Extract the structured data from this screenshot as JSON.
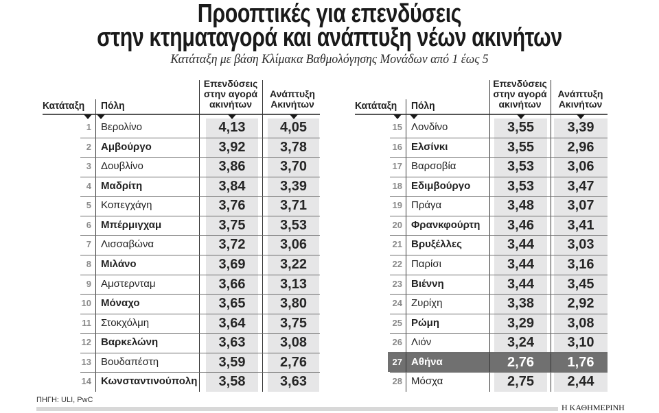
{
  "header": {
    "title_line1": "Προοπτικές για επενδύσεις",
    "title_line2": "στην κτηματαγορά και ανάπτυξη νέων ακινήτων",
    "subtitle": "Κατάταξη με βάση Κλίμακα Βαθμολόγησης Μονάδων από 1 έως 5"
  },
  "columns": {
    "rank": "Κατάταξη",
    "city": "Πόλη",
    "investment": [
      "Επενδύσεις",
      "στην αγορά",
      "ακινήτων"
    ],
    "development": [
      "Ανάπτυξη",
      "Ακινήτων"
    ]
  },
  "tables": [
    {
      "rows": [
        {
          "rank": "1",
          "city": "Βερολίνο",
          "investment": "4,13",
          "development": "4,05",
          "bold": false
        },
        {
          "rank": "2",
          "city": "Αμβούργο",
          "investment": "3,92",
          "development": "3,78",
          "bold": true
        },
        {
          "rank": "3",
          "city": "Δουβλίνο",
          "investment": "3,86",
          "development": "3,70",
          "bold": false
        },
        {
          "rank": "4",
          "city": "Μαδρίτη",
          "investment": "3,84",
          "development": "3,39",
          "bold": true
        },
        {
          "rank": "5",
          "city": "Κοπεγχάγη",
          "investment": "3,76",
          "development": "3,71",
          "bold": false
        },
        {
          "rank": "6",
          "city": "Μπέρμιγχαμ",
          "investment": "3,75",
          "development": "3,53",
          "bold": true
        },
        {
          "rank": "7",
          "city": "Λισσαβώνα",
          "investment": "3,72",
          "development": "3,06",
          "bold": false
        },
        {
          "rank": "8",
          "city": "Μιλάνο",
          "investment": "3,69",
          "development": "3,22",
          "bold": true
        },
        {
          "rank": "9",
          "city": "Αμστερνταμ",
          "investment": "3,66",
          "development": "3,13",
          "bold": false
        },
        {
          "rank": "10",
          "city": "Μόναχο",
          "investment": "3,65",
          "development": "3,80",
          "bold": true
        },
        {
          "rank": "11",
          "city": "Στοκχόλμη",
          "investment": "3,64",
          "development": "3,75",
          "bold": false
        },
        {
          "rank": "12",
          "city": "Βαρκελώνη",
          "investment": "3,63",
          "development": "3,08",
          "bold": true
        },
        {
          "rank": "13",
          "city": "Βουδαπέστη",
          "investment": "3,59",
          "development": "2,76",
          "bold": false
        },
        {
          "rank": "14",
          "city": "Κωνσταντινούπολη",
          "investment": "3,58",
          "development": "3,63",
          "bold": true
        }
      ]
    },
    {
      "rows": [
        {
          "rank": "15",
          "city": "Λονδίνο",
          "investment": "3,55",
          "development": "3,39",
          "bold": false
        },
        {
          "rank": "16",
          "city": "Ελσίνκι",
          "investment": "3,55",
          "development": "2,96",
          "bold": true
        },
        {
          "rank": "17",
          "city": "Βαρσοβία",
          "investment": "3,53",
          "development": "3,06",
          "bold": false
        },
        {
          "rank": "18",
          "city": "Εδιμβούργο",
          "investment": "3,53",
          "development": "3,47",
          "bold": true
        },
        {
          "rank": "19",
          "city": "Πράγα",
          "investment": "3,48",
          "development": "3,07",
          "bold": false
        },
        {
          "rank": "20",
          "city": "Φρανκφούρτη",
          "investment": "3,46",
          "development": "3,41",
          "bold": true
        },
        {
          "rank": "21",
          "city": "Βρυξέλλες",
          "investment": "3,44",
          "development": "3,03",
          "bold": true
        },
        {
          "rank": "22",
          "city": "Παρίσι",
          "investment": "3,44",
          "development": "3,16",
          "bold": false
        },
        {
          "rank": "23",
          "city": "Βιέννη",
          "investment": "3,44",
          "development": "3,45",
          "bold": true
        },
        {
          "rank": "24",
          "city": "Ζυρίχη",
          "investment": "3,38",
          "development": "2,92",
          "bold": false
        },
        {
          "rank": "25",
          "city": "Ρώμη",
          "investment": "3,29",
          "development": "3,08",
          "bold": true
        },
        {
          "rank": "26",
          "city": "Λιόν",
          "investment": "3,24",
          "development": "3,10",
          "bold": false
        },
        {
          "rank": "27",
          "city": "Αθήνα",
          "investment": "2,76",
          "development": "1,76",
          "bold": true,
          "highlight": true
        },
        {
          "rank": "28",
          "city": "Μόσχα",
          "investment": "2,75",
          "development": "2,44",
          "bold": false
        }
      ]
    }
  ],
  "footer": {
    "source": "ΠΗΓΗ: ULI, PwC",
    "brand": "Η ΚΑΘΗΜΕΡΙΝΗ"
  },
  "colors": {
    "value_box": "#e6e6e7",
    "highlight_row": "#707070",
    "rank_text": "#8a8a8a",
    "footer_bar": "#d8d8d8"
  },
  "chart_data": {
    "type": "table",
    "title": "Προοπτικές για επενδύσεις στην κτηματαγορά και ανάπτυξη νέων ακινήτων",
    "subtitle": "Κατάταξη με βάση Κλίμακα Βαθμολόγησης Μονάδων από 1 έως 5",
    "scale": [
      1,
      5
    ],
    "columns": [
      "Κατάταξη",
      "Πόλη",
      "Επενδύσεις στην αγορά ακινήτων",
      "Ανάπτυξη Ακινήτων"
    ],
    "categories": [
      "Βερολίνο",
      "Αμβούργο",
      "Δουβλίνο",
      "Μαδρίτη",
      "Κοπεγχάγη",
      "Μπέρμιγχαμ",
      "Λισσαβώνα",
      "Μιλάνο",
      "Αμστερνταμ",
      "Μόναχο",
      "Στοκχόλμη",
      "Βαρκελώνη",
      "Βουδαπέστη",
      "Κωνσταντινούπολη",
      "Λονδίνο",
      "Ελσίνκι",
      "Βαρσοβία",
      "Εδιμβούργο",
      "Πράγα",
      "Φρανκφούρτη",
      "Βρυξέλλες",
      "Παρίσι",
      "Βιέννη",
      "Ζυρίχη",
      "Ρώμη",
      "Λιόν",
      "Αθήνα",
      "Μόσχα"
    ],
    "series": [
      {
        "name": "Επενδύσεις στην αγορά ακινήτων",
        "values": [
          4.13,
          3.92,
          3.86,
          3.84,
          3.76,
          3.75,
          3.72,
          3.69,
          3.66,
          3.65,
          3.64,
          3.63,
          3.59,
          3.58,
          3.55,
          3.55,
          3.53,
          3.53,
          3.48,
          3.46,
          3.44,
          3.44,
          3.44,
          3.38,
          3.29,
          3.24,
          2.76,
          2.75
        ]
      },
      {
        "name": "Ανάπτυξη Ακινήτων",
        "values": [
          4.05,
          3.78,
          3.7,
          3.39,
          3.71,
          3.53,
          3.06,
          3.22,
          3.13,
          3.8,
          3.75,
          3.08,
          2.76,
          3.63,
          3.39,
          2.96,
          3.06,
          3.47,
          3.07,
          3.41,
          3.03,
          3.16,
          3.45,
          2.92,
          3.08,
          3.1,
          1.76,
          2.44
        ]
      }
    ],
    "highlighted": "Αθήνα",
    "source": "ΠΗΓΗ: ULI, PwC"
  }
}
